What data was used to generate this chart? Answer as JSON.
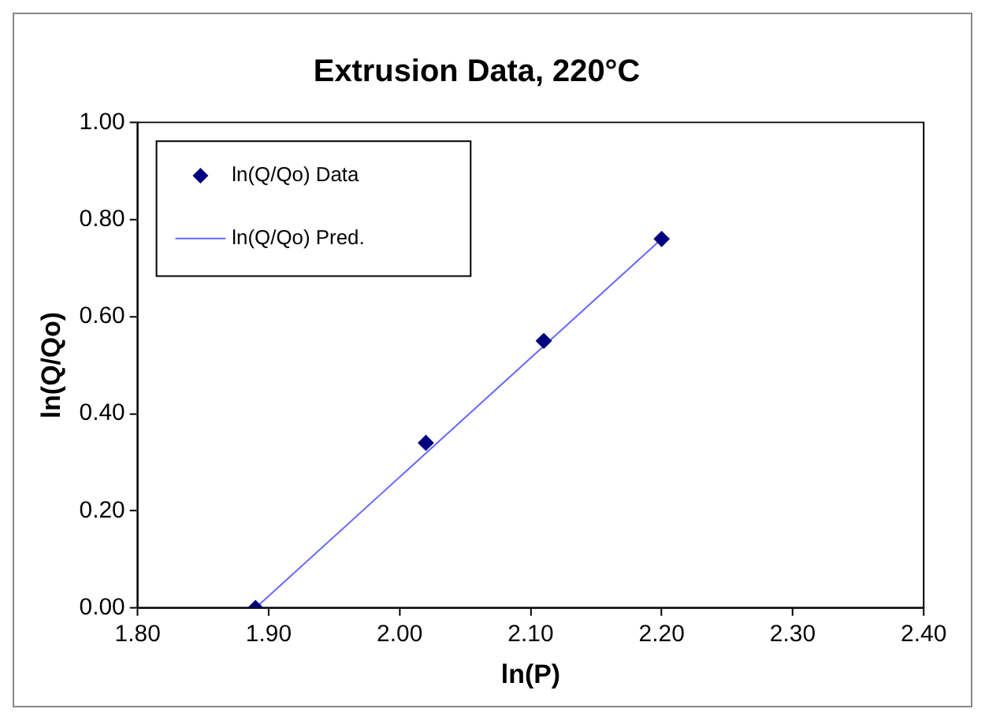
{
  "chart_data": {
    "type": "scatter",
    "title": "Extrusion Data, 220°C",
    "xlabel": "ln(P)",
    "ylabel": "ln(Q/Qo)",
    "xlim": [
      1.8,
      2.4
    ],
    "xticks": [
      {
        "value": 1.8,
        "label": "1.80"
      },
      {
        "value": 1.9,
        "label": "1.90"
      },
      {
        "value": 2.0,
        "label": "2.00"
      },
      {
        "value": 2.1,
        "label": "2.10"
      },
      {
        "value": 2.2,
        "label": "2.20"
      },
      {
        "value": 2.3,
        "label": "2.30"
      },
      {
        "value": 2.4,
        "label": "2.40"
      }
    ],
    "ylim": [
      0,
      1
    ],
    "yticks": [
      {
        "value": 0,
        "label": "0.00"
      },
      {
        "value": 0.2,
        "label": "0.20"
      },
      {
        "value": 0.4,
        "label": "0.40"
      },
      {
        "value": 0.6,
        "label": "0.60"
      },
      {
        "value": 0.8,
        "label": "0.80"
      },
      {
        "value": 1,
        "label": "1.00"
      }
    ],
    "grid": false,
    "legend": "top left",
    "series": [
      {
        "name": "ln(Q/Qo) Data",
        "marker": "diamond",
        "color": "#000080",
        "x": [
          1.89,
          2.02,
          2.11,
          2.2
        ],
        "values": [
          0,
          0.34,
          0.55,
          0.76
        ]
      },
      {
        "name": "ln(Q/Qo) Pred.",
        "type": "line",
        "marker": "none",
        "line_style": "solid",
        "color": "#6666ff",
        "x": [
          1.89,
          2.2
        ],
        "values": [
          0,
          0.76
        ]
      }
    ]
  }
}
